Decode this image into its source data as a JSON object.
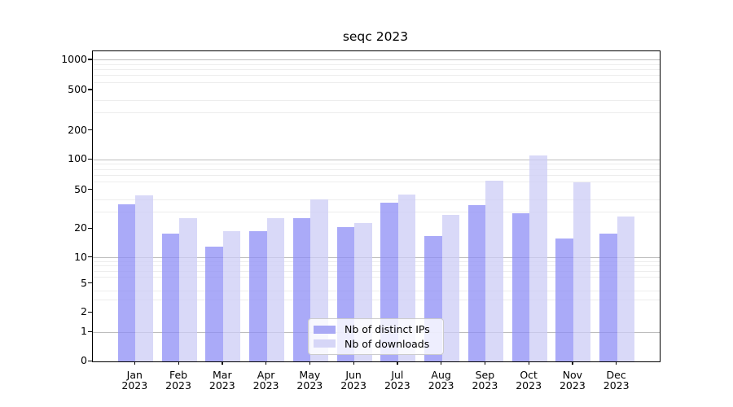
{
  "chart_data": {
    "type": "bar",
    "title": "seqc 2023",
    "xlabel": "",
    "ylabel": "",
    "x": {
      "months": [
        "Jan",
        "Feb",
        "Mar",
        "Apr",
        "May",
        "Jun",
        "Jul",
        "Aug",
        "Sep",
        "Oct",
        "Nov",
        "Dec"
      ],
      "year": "2023"
    },
    "series": [
      {
        "name": "Nb of distinct IPs",
        "bar_color": "rgba(141,141,245,0.75)",
        "legend_color": "#a9a9f5",
        "values": [
          36,
          18,
          13,
          19,
          26,
          21,
          37,
          17,
          35,
          29,
          16,
          18
        ]
      },
      {
        "name": "Nb of downloads",
        "bar_color": "rgba(204,204,245,0.75)",
        "legend_color": "#d6d6f7",
        "values": [
          44,
          26,
          19,
          26,
          40,
          23,
          45,
          28,
          62,
          110,
          60,
          27
        ]
      }
    ],
    "y_axis": {
      "scale": "symlog",
      "tick_values": [
        0,
        1,
        2,
        5,
        10,
        20,
        50,
        100,
        200,
        500,
        1000
      ],
      "major_gridlines": [
        1,
        10,
        100,
        1000
      ],
      "minor_gridlines": [
        3,
        4,
        6,
        7,
        8,
        9,
        30,
        40,
        60,
        70,
        80,
        90,
        300,
        400,
        600,
        700,
        800,
        900
      ],
      "ylim": [
        0,
        1200
      ]
    },
    "grid": true,
    "legend": {
      "position": "lower-center",
      "entries": [
        "Nb of distinct IPs",
        "Nb of downloads"
      ]
    }
  },
  "colors": {
    "major_grid": "#bdbdbd",
    "minor_grid": "#ededed",
    "axis": "#000000",
    "text": "#000000"
  }
}
